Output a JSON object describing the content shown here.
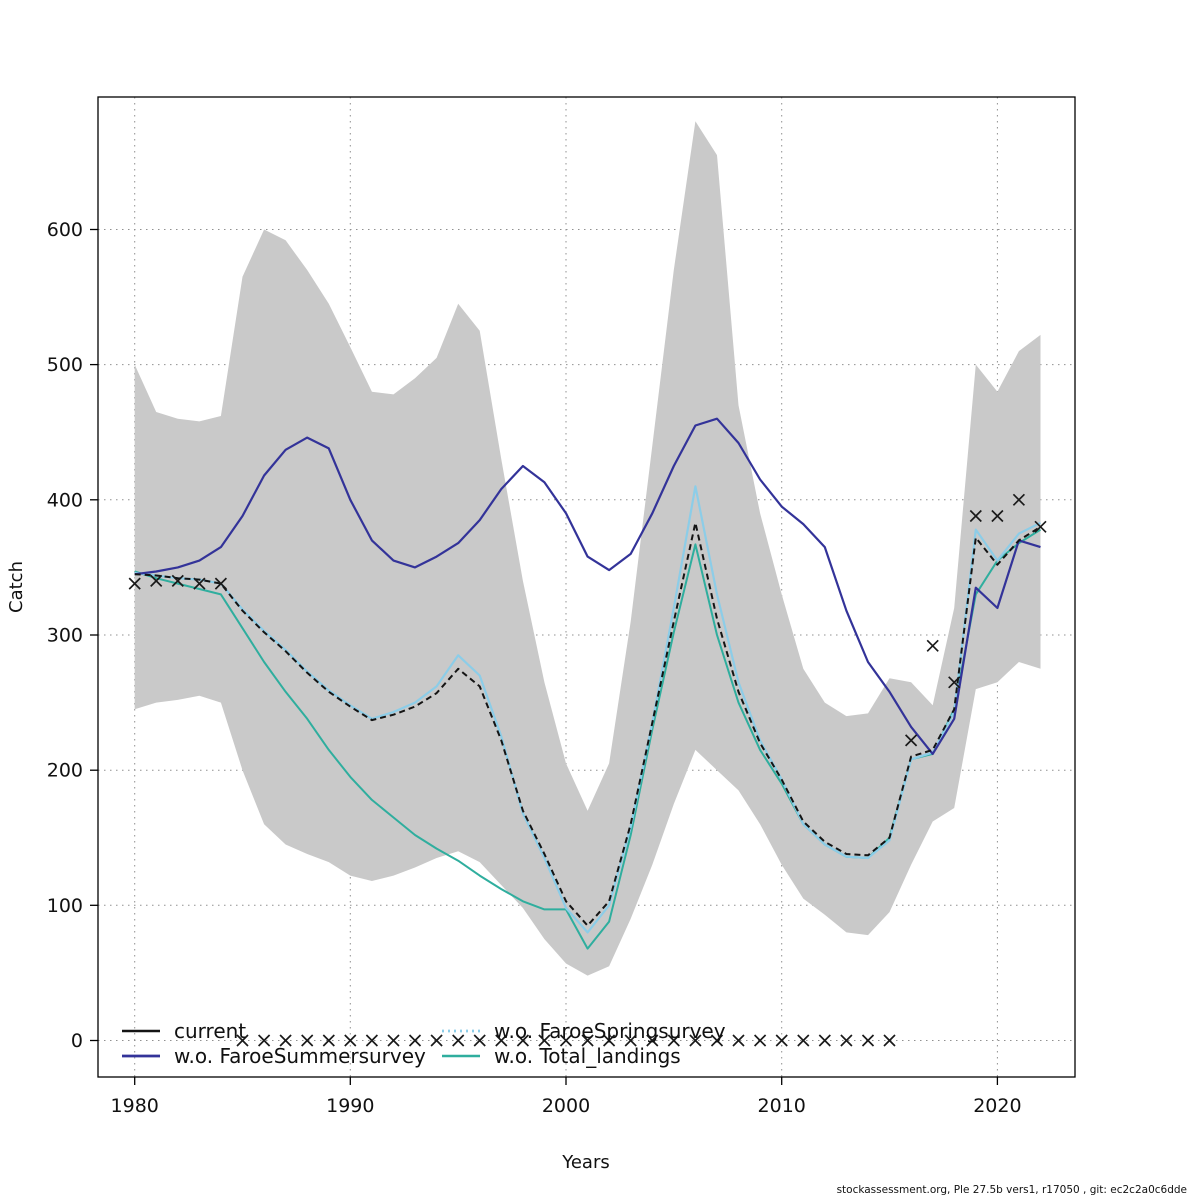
{
  "chart_data": {
    "type": "line",
    "title": "",
    "xlabel": "Years",
    "ylabel": "Catch",
    "xlim": [
      1978.3,
      2023.6
    ],
    "ylim": [
      -27,
      698
    ],
    "xticks": [
      1980,
      1990,
      2000,
      2010,
      2020
    ],
    "yticks": [
      0,
      100,
      200,
      300,
      400,
      500,
      600
    ],
    "grid": "dotted",
    "grid_color": "#909090",
    "years": [
      1980,
      1981,
      1982,
      1983,
      1984,
      1985,
      1986,
      1987,
      1988,
      1989,
      1990,
      1991,
      1992,
      1993,
      1994,
      1995,
      1996,
      1997,
      1998,
      1999,
      2000,
      2001,
      2002,
      2003,
      2004,
      2005,
      2006,
      2007,
      2008,
      2009,
      2010,
      2011,
      2012,
      2013,
      2014,
      2015,
      2016,
      2017,
      2018,
      2019,
      2020,
      2021,
      2022
    ],
    "band": {
      "label": "confidence-interval",
      "color": "#c9c9c9",
      "upper": [
        500,
        465,
        460,
        458,
        462,
        565,
        600,
        592,
        570,
        545,
        513,
        480,
        478,
        490,
        505,
        545,
        525,
        430,
        340,
        265,
        205,
        170,
        205,
        310,
        440,
        570,
        680,
        655,
        470,
        390,
        330,
        275,
        250,
        240,
        242,
        268,
        265,
        248,
        320,
        500,
        480,
        510,
        522
      ],
      "lower": [
        245,
        250,
        252,
        255,
        250,
        200,
        160,
        145,
        138,
        132,
        122,
        118,
        122,
        128,
        135,
        140,
        132,
        115,
        98,
        75,
        57,
        48,
        55,
        90,
        130,
        175,
        215,
        200,
        185,
        160,
        130,
        105,
        93,
        80,
        78,
        95,
        130,
        162,
        172,
        260,
        265,
        280,
        275
      ]
    },
    "series": [
      {
        "id": "current",
        "name": "current",
        "color": "#141414",
        "width": 2,
        "dash": "6 4",
        "legend_dash": "",
        "values": [
          345,
          344,
          342,
          341,
          338,
          318,
          302,
          288,
          272,
          258,
          247,
          237,
          241,
          247,
          257,
          275,
          262,
          222,
          170,
          138,
          103,
          85,
          103,
          160,
          235,
          310,
          383,
          312,
          258,
          220,
          193,
          162,
          147,
          138,
          137,
          150,
          210,
          215,
          245,
          372,
          352,
          370,
          380
        ]
      },
      {
        "id": "wo-faroe-summersurvey",
        "name": "w.o. FaroeSummersurvey",
        "color": "#333399",
        "width": 2.2,
        "dash": "",
        "legend_dash": "",
        "values": [
          345,
          347,
          350,
          355,
          365,
          388,
          418,
          437,
          446,
          438,
          400,
          370,
          355,
          350,
          358,
          368,
          385,
          408,
          425,
          413,
          390,
          358,
          348,
          360,
          390,
          425,
          455,
          460,
          442,
          415,
          395,
          382,
          365,
          318,
          280,
          258,
          232,
          212,
          238,
          335,
          320,
          370,
          365
        ]
      },
      {
        "id": "wo-faroe-springsurvey",
        "name": "w.o. FaroeSpringsurvey",
        "color": "#8ccde8",
        "width": 2.2,
        "dash": "",
        "legend_dash": "2 4",
        "values": [
          346,
          344,
          342,
          341,
          338,
          319,
          303,
          289,
          273,
          259,
          248,
          238,
          243,
          250,
          262,
          285,
          270,
          225,
          168,
          135,
          98,
          80,
          100,
          158,
          235,
          320,
          410,
          330,
          265,
          222,
          193,
          160,
          145,
          136,
          135,
          148,
          208,
          213,
          243,
          378,
          355,
          375,
          383
        ]
      },
      {
        "id": "wo-total-landings",
        "name": "w.o. Total_landings",
        "color": "#2fae9e",
        "width": 2,
        "dash": "",
        "legend_dash": "",
        "values": [
          347,
          342,
          338,
          334,
          330,
          305,
          280,
          258,
          238,
          215,
          195,
          178,
          165,
          152,
          142,
          133,
          122,
          112,
          103,
          97,
          97,
          68,
          88,
          152,
          230,
          302,
          367,
          300,
          250,
          215,
          190,
          160,
          145,
          136,
          135,
          150,
          208,
          212,
          245,
          330,
          355,
          368,
          378
        ]
      }
    ],
    "markers": {
      "symbol": "x",
      "color": "#1a1a1a",
      "values": [
        338,
        340,
        340,
        338,
        338,
        0,
        0,
        0,
        0,
        0,
        0,
        0,
        0,
        0,
        0,
        0,
        0,
        0,
        0,
        0,
        0,
        0,
        0,
        0,
        0,
        0,
        0,
        0,
        0,
        0,
        0,
        0,
        0,
        0,
        0,
        0,
        222,
        292,
        265,
        388,
        388,
        400,
        380
      ]
    },
    "legend": {
      "position": "bottom-left",
      "columns": 2,
      "entries": [
        "current",
        "w.o. FaroeSummersurvey",
        "w.o. FaroeSpringsurvey",
        "w.o. Total_landings"
      ]
    }
  },
  "footer": {
    "text": "stockassessment.org, Ple 27.5b vers1, r17050 , git: ec2c2a0c6dde"
  }
}
